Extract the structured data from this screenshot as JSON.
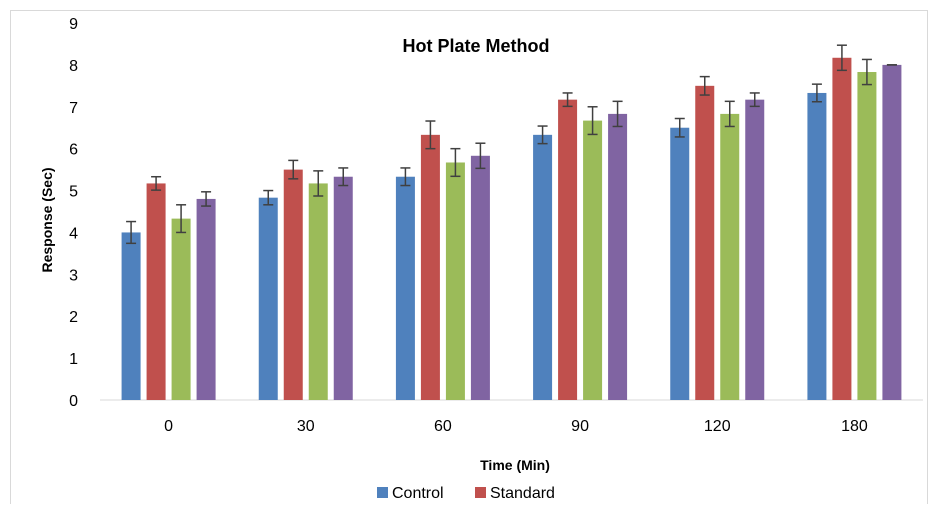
{
  "chart_data": {
    "type": "bar",
    "title": "Hot Plate Method",
    "xlabel": "Time (Min)",
    "ylabel": "Response (Sec)",
    "ylim": [
      0,
      9
    ],
    "yticks": [
      "0",
      "1",
      "2",
      "3",
      "4",
      "5",
      "6",
      "7",
      "8",
      "9"
    ],
    "categories": [
      "0",
      "30",
      "60",
      "90",
      "120",
      "180"
    ],
    "series": [
      {
        "name": "Control",
        "color": "#4f81bd",
        "values": [
          4.0,
          4.83,
          5.33,
          6.33,
          6.5,
          7.33
        ],
        "errors": [
          0.26,
          0.17,
          0.21,
          0.21,
          0.22,
          0.21
        ]
      },
      {
        "name": "Standard",
        "color": "#c0504d",
        "values": [
          5.17,
          5.5,
          6.33,
          7.17,
          7.5,
          8.17
        ],
        "errors": [
          0.16,
          0.22,
          0.33,
          0.16,
          0.22,
          0.3
        ]
      },
      {
        "color": "#9bbb59",
        "values": [
          4.33,
          5.17,
          5.67,
          6.67,
          6.83,
          7.83
        ],
        "errors": [
          0.33,
          0.3,
          0.33,
          0.33,
          0.3,
          0.3
        ]
      },
      {
        "color": "#8064a2",
        "values": [
          4.8,
          5.33,
          5.83,
          6.83,
          7.17,
          8.0
        ],
        "errors": [
          0.17,
          0.21,
          0.3,
          0.3,
          0.16,
          0.0
        ]
      }
    ],
    "legend": {
      "position": "bottom",
      "visible_entries": [
        "Control",
        "Standard"
      ]
    },
    "grid": false
  }
}
